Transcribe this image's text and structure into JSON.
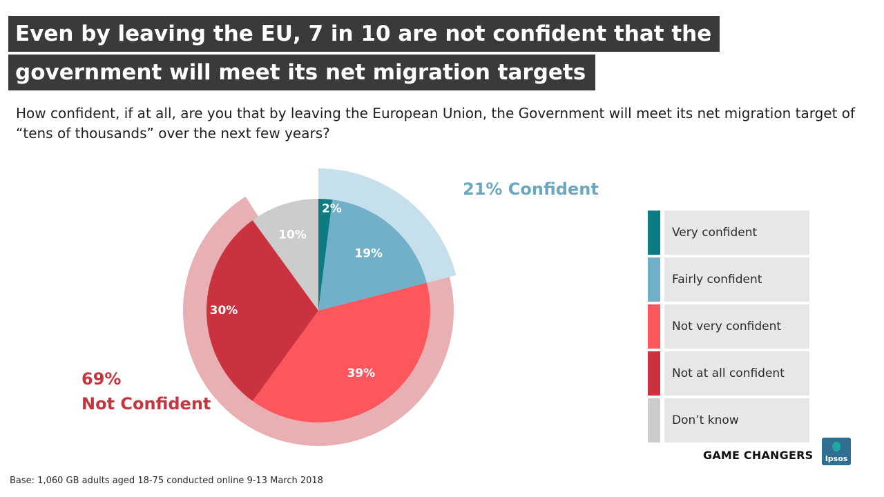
{
  "title": {
    "line1": "Even by leaving the EU, 7 in 10 are not confident that the",
    "line2": "government will meet its net migration targets"
  },
  "question": "How confident, if at all, are you that by leaving the European Union, the Government will meet its net migration target of “tens of thousands” over the next few years?",
  "groups": {
    "confident": "21% Confident",
    "not_confident_pct": "69%",
    "not_confident_label": "Not Confident"
  },
  "footer": {
    "base": "Base: 1,060 GB adults aged 18-75 conducted online 9-13 March 2018",
    "brand_tag": "GAME CHANGERS",
    "logo_text": "Ipsos"
  },
  "colors": {
    "very_confident": "#0d7b82",
    "fairly_confident": "#72b0ca",
    "not_very_confident": "#fd575e",
    "not_at_all_confident": "#c9323e",
    "dont_know": "#cccccc",
    "confident_ring": "#c5e0ea",
    "not_confident_ring": "#e8b0b3"
  },
  "chart_data": {
    "type": "pie",
    "title": "",
    "categories": [
      "Very confident",
      "Fairly confident",
      "Not very confident",
      "Not at all confident",
      "Don’t know"
    ],
    "values": [
      2,
      19,
      39,
      30,
      10
    ],
    "labels": [
      "2%",
      "19%",
      "39%",
      "30%",
      "10%"
    ],
    "groups": [
      {
        "name": "Confident",
        "value": 21,
        "members": [
          "Very confident",
          "Fairly confident"
        ]
      },
      {
        "name": "Not Confident",
        "value": 69,
        "members": [
          "Not very confident",
          "Not at all confident"
        ]
      }
    ],
    "legend_position": "right",
    "start": "12 o'clock, clockwise"
  }
}
